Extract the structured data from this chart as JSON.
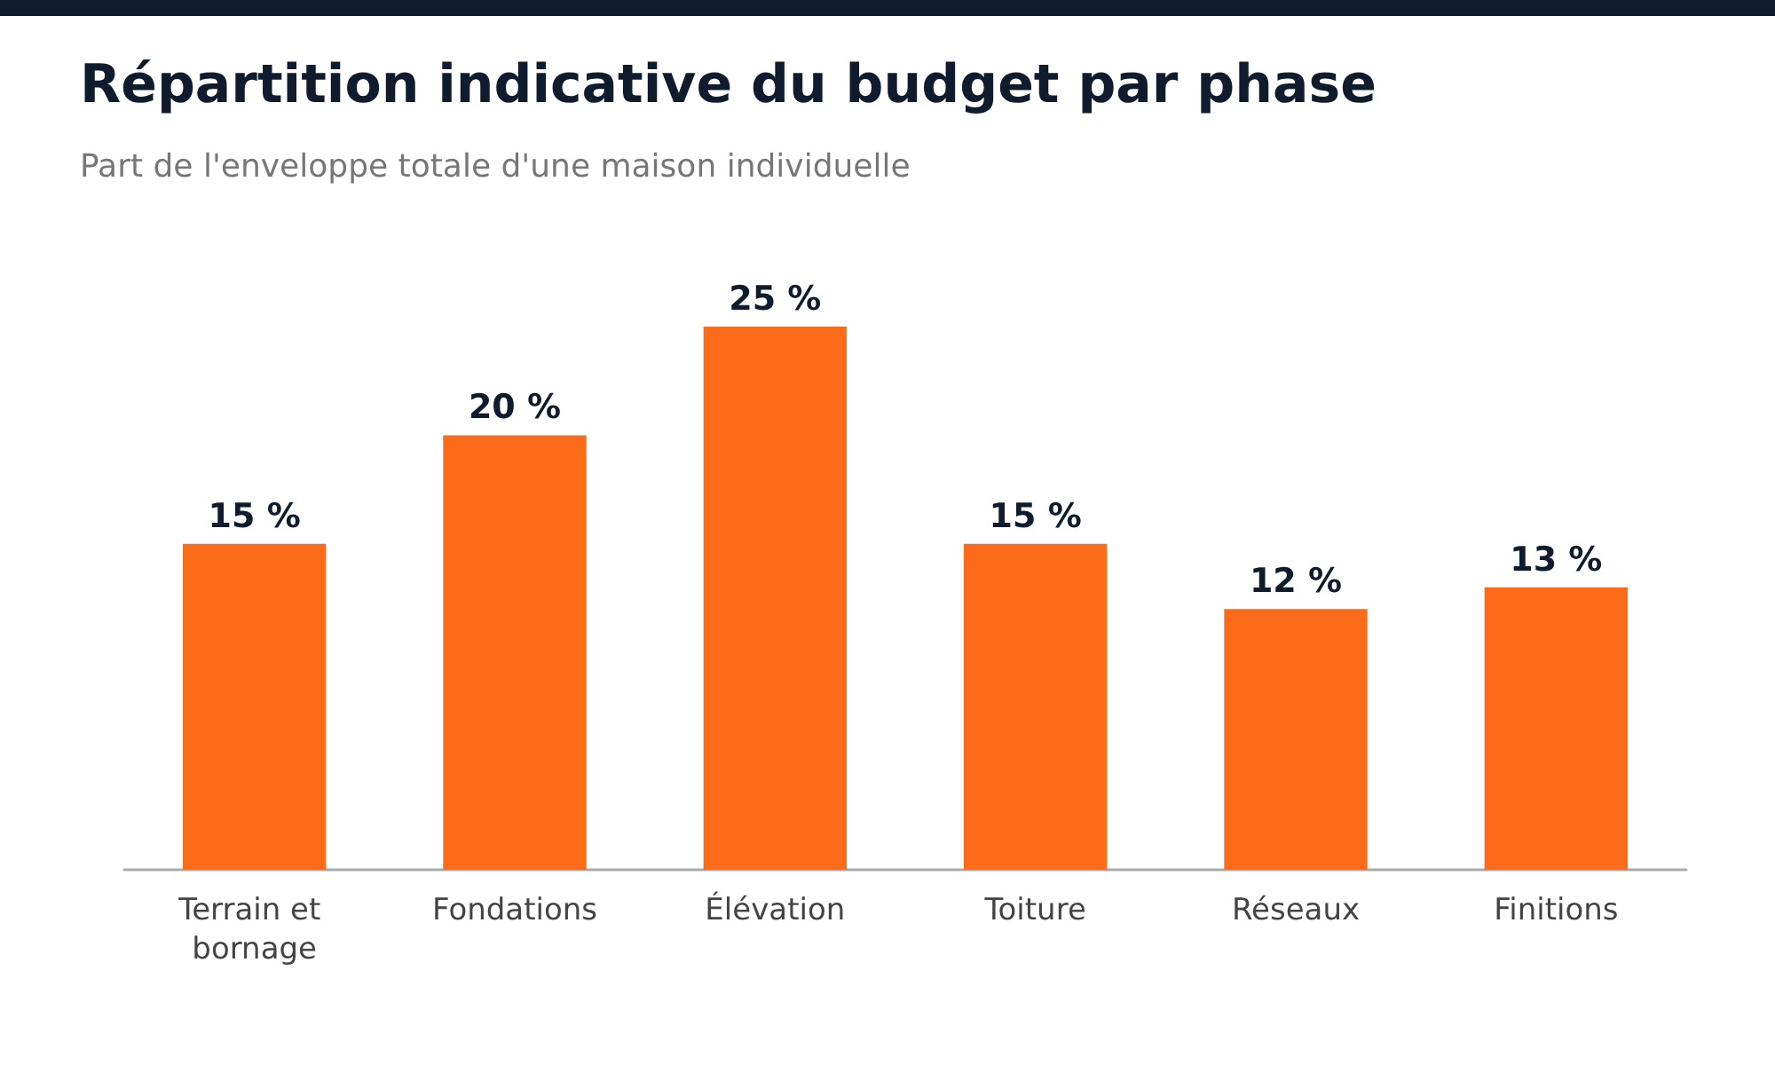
{
  "chart_data": {
    "type": "bar",
    "title": "Répartition indicative du budget par phase",
    "subtitle": "Part de l'enveloppe totale d'une maison individuelle",
    "categories": [
      "Terrain et bornage",
      "Fondations",
      "Élévation",
      "Toiture",
      "Réseaux",
      "Finitions"
    ],
    "values": [
      15,
      20,
      25,
      15,
      12,
      13
    ],
    "value_labels": [
      "15 %",
      "20 %",
      "25 %",
      "15 %",
      "12 %",
      "13 %"
    ],
    "color": "#fc6b1a"
  }
}
